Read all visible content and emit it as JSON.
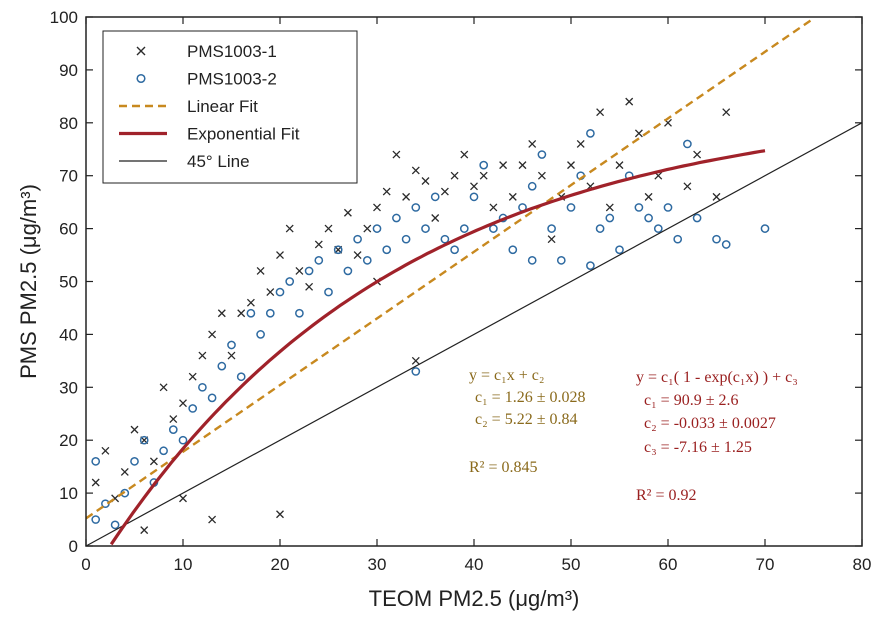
{
  "chart_data": {
    "type": "scatter",
    "xlabel": "TEOM PM2.5 (μg/m³)",
    "ylabel": "PMS PM2.5 (μg/m³)",
    "xlim": [
      0,
      80
    ],
    "ylim": [
      0,
      100
    ],
    "xticks": [
      "0",
      "10",
      "20",
      "30",
      "40",
      "50",
      "60",
      "70",
      "80"
    ],
    "yticks": [
      "0",
      "10",
      "20",
      "30",
      "40",
      "50",
      "60",
      "70",
      "80",
      "90",
      "100"
    ],
    "grid": false,
    "legend_position": "top-left",
    "colors": {
      "pms1": "#2b2b2b",
      "pms2": "#2e6aa1",
      "linear": "#c8891f",
      "exponential": "#a0222a",
      "line45": "#222222",
      "linear_text": "#8a6a1c",
      "exp_text": "#9a2020"
    },
    "legend": [
      {
        "name": "PMS1003-1",
        "marker": "x"
      },
      {
        "name": "PMS1003-2",
        "marker": "o"
      },
      {
        "name": "Linear Fit",
        "style": "dashed"
      },
      {
        "name": "Exponential Fit",
        "style": "solid-thick"
      },
      {
        "name": "45° Line",
        "style": "solid-thin"
      }
    ],
    "series": [
      {
        "name": "PMS1003-1",
        "marker": "x",
        "points": [
          [
            1,
            12
          ],
          [
            2,
            18
          ],
          [
            3,
            9
          ],
          [
            4,
            14
          ],
          [
            5,
            22
          ],
          [
            6,
            20
          ],
          [
            7,
            16
          ],
          [
            8,
            30
          ],
          [
            9,
            24
          ],
          [
            10,
            27
          ],
          [
            11,
            32
          ],
          [
            12,
            36
          ],
          [
            13,
            40
          ],
          [
            14,
            44
          ],
          [
            15,
            36
          ],
          [
            16,
            44
          ],
          [
            17,
            46
          ],
          [
            18,
            52
          ],
          [
            19,
            48
          ],
          [
            20,
            55
          ],
          [
            21,
            60
          ],
          [
            22,
            52
          ],
          [
            23,
            49
          ],
          [
            24,
            57
          ],
          [
            25,
            60
          ],
          [
            26,
            56
          ],
          [
            27,
            63
          ],
          [
            28,
            55
          ],
          [
            29,
            60
          ],
          [
            30,
            64
          ],
          [
            31,
            67
          ],
          [
            32,
            74
          ],
          [
            33,
            66
          ],
          [
            34,
            71
          ],
          [
            35,
            69
          ],
          [
            36,
            62
          ],
          [
            37,
            67
          ],
          [
            38,
            70
          ],
          [
            39,
            74
          ],
          [
            40,
            68
          ],
          [
            41,
            70
          ],
          [
            42,
            64
          ],
          [
            43,
            72
          ],
          [
            44,
            66
          ],
          [
            45,
            72
          ],
          [
            46,
            76
          ],
          [
            47,
            70
          ],
          [
            48,
            58
          ],
          [
            49,
            66
          ],
          [
            50,
            72
          ],
          [
            51,
            76
          ],
          [
            52,
            68
          ],
          [
            53,
            82
          ],
          [
            54,
            64
          ],
          [
            55,
            72
          ],
          [
            56,
            84
          ],
          [
            57,
            78
          ],
          [
            58,
            66
          ],
          [
            59,
            70
          ],
          [
            60,
            80
          ],
          [
            62,
            68
          ],
          [
            63,
            74
          ],
          [
            65,
            66
          ],
          [
            66,
            82
          ],
          [
            30,
            50
          ],
          [
            34,
            35
          ],
          [
            20,
            6
          ],
          [
            10,
            9
          ],
          [
            13,
            5
          ],
          [
            6,
            3
          ]
        ]
      },
      {
        "name": "PMS1003-2",
        "marker": "o",
        "points": [
          [
            1,
            5
          ],
          [
            2,
            8
          ],
          [
            3,
            4
          ],
          [
            4,
            10
          ],
          [
            5,
            16
          ],
          [
            6,
            20
          ],
          [
            7,
            12
          ],
          [
            8,
            18
          ],
          [
            9,
            22
          ],
          [
            10,
            20
          ],
          [
            11,
            26
          ],
          [
            12,
            30
          ],
          [
            13,
            28
          ],
          [
            14,
            34
          ],
          [
            15,
            38
          ],
          [
            16,
            32
          ],
          [
            17,
            44
          ],
          [
            18,
            40
          ],
          [
            19,
            44
          ],
          [
            20,
            48
          ],
          [
            21,
            50
          ],
          [
            22,
            44
          ],
          [
            23,
            52
          ],
          [
            24,
            54
          ],
          [
            25,
            48
          ],
          [
            26,
            56
          ],
          [
            27,
            52
          ],
          [
            28,
            58
          ],
          [
            29,
            54
          ],
          [
            30,
            60
          ],
          [
            31,
            56
          ],
          [
            32,
            62
          ],
          [
            33,
            58
          ],
          [
            34,
            64
          ],
          [
            35,
            60
          ],
          [
            36,
            66
          ],
          [
            37,
            58
          ],
          [
            38,
            56
          ],
          [
            39,
            60
          ],
          [
            40,
            66
          ],
          [
            41,
            72
          ],
          [
            42,
            60
          ],
          [
            43,
            62
          ],
          [
            44,
            56
          ],
          [
            45,
            64
          ],
          [
            46,
            68
          ],
          [
            47,
            74
          ],
          [
            48,
            60
          ],
          [
            49,
            54
          ],
          [
            50,
            64
          ],
          [
            51,
            70
          ],
          [
            52,
            78
          ],
          [
            53,
            60
          ],
          [
            54,
            62
          ],
          [
            55,
            56
          ],
          [
            56,
            70
          ],
          [
            57,
            64
          ],
          [
            58,
            62
          ],
          [
            59,
            60
          ],
          [
            60,
            64
          ],
          [
            61,
            58
          ],
          [
            62,
            76
          ],
          [
            63,
            62
          ],
          [
            65,
            58
          ],
          [
            66,
            57
          ],
          [
            70,
            60
          ],
          [
            1,
            16
          ],
          [
            34,
            33
          ],
          [
            46,
            54
          ],
          [
            52,
            53
          ]
        ]
      },
      {
        "name": "Linear Fit",
        "type": "line",
        "slope": 1.26,
        "intercept": 5.22,
        "x_range": [
          0,
          75
        ]
      },
      {
        "name": "Exponential Fit",
        "type": "line",
        "formula": "c1*(1-exp(c2*x))+c3",
        "c1": 90.9,
        "c2": -0.033,
        "c3": -7.16,
        "x_range": [
          2.6,
          70
        ]
      },
      {
        "name": "45° Line",
        "type": "line",
        "slope": 1,
        "intercept": 0,
        "x_range": [
          0,
          80
        ]
      }
    ],
    "annotations": {
      "linear": [
        "y = c₁x + c₂",
        "c₁ = 1.26 ± 0.028",
        "c₂ = 5.22 ± 0.84",
        "R² = 0.845"
      ],
      "exponential": [
        "y = c₁( 1 - exp(c₁x) ) + c₃",
        "c₁ = 90.9 ± 2.6",
        "c₂ = -0.033 ± 0.0027",
        "c₃ = -7.16 ± 1.25",
        "R² = 0.92"
      ]
    }
  }
}
